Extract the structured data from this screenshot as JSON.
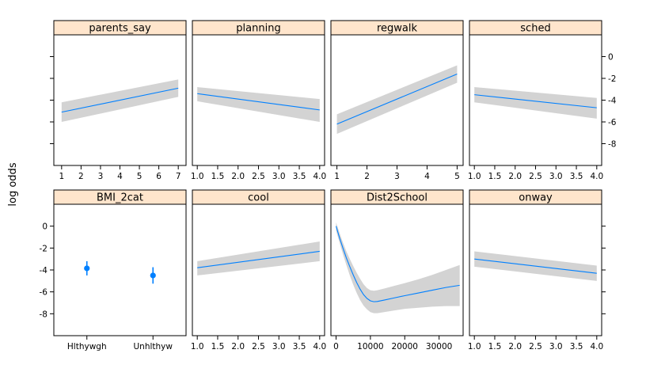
{
  "chart_data": {
    "type": "line",
    "layout": "lattice 4x2",
    "ylabel": "log odds",
    "ylim": [
      -10,
      2
    ],
    "yticks": [
      -8,
      -6,
      -4,
      -2,
      0
    ],
    "panels": [
      {
        "name": "parents_say",
        "kind": "line",
        "xlim": [
          0.6,
          7.4
        ],
        "xticks": [
          1,
          2,
          3,
          4,
          5,
          6,
          7
        ],
        "xticklabels": [
          "1",
          "2",
          "3",
          "4",
          "5",
          "6",
          "7"
        ],
        "x": [
          1,
          7
        ],
        "y": [
          -5.1,
          -2.9
        ],
        "lower": [
          -6.0,
          -3.7
        ],
        "upper": [
          -4.2,
          -2.1
        ]
      },
      {
        "name": "planning",
        "kind": "line",
        "xlim": [
          0.88,
          4.12
        ],
        "xticks": [
          1.0,
          1.5,
          2.0,
          2.5,
          3.0,
          3.5,
          4.0
        ],
        "xticklabels": [
          "1.0",
          "1.5",
          "2.0",
          "2.5",
          "3.0",
          "3.5",
          "4.0"
        ],
        "x": [
          1,
          4
        ],
        "y": [
          -3.4,
          -4.9
        ],
        "lower": [
          -4.1,
          -6.0
        ],
        "upper": [
          -2.8,
          -3.9
        ]
      },
      {
        "name": "regwalk",
        "kind": "line",
        "xlim": [
          0.8,
          5.2
        ],
        "xticks": [
          1,
          2,
          3,
          4,
          5
        ],
        "xticklabels": [
          "1",
          "2",
          "3",
          "4",
          "5"
        ],
        "x": [
          1,
          5
        ],
        "y": [
          -6.2,
          -1.6
        ],
        "lower": [
          -7.1,
          -2.4
        ],
        "upper": [
          -5.3,
          -0.8
        ]
      },
      {
        "name": "sched",
        "kind": "line",
        "xlim": [
          0.88,
          4.12
        ],
        "xticks": [
          1.0,
          1.5,
          2.0,
          2.5,
          3.0,
          3.5,
          4.0
        ],
        "xticklabels": [
          "1.0",
          "1.5",
          "2.0",
          "2.5",
          "3.0",
          "3.5",
          "4.0"
        ],
        "x": [
          1,
          4
        ],
        "y": [
          -3.5,
          -4.7
        ],
        "lower": [
          -4.2,
          -5.7
        ],
        "upper": [
          -2.8,
          -3.8
        ]
      },
      {
        "name": "BMI_2cat",
        "kind": "point",
        "xlim": [
          0.5,
          2.5
        ],
        "xticks": [
          1,
          2
        ],
        "xticklabels": [
          "Hlthywgh",
          "Unhlthyw"
        ],
        "categories": [
          "Hlthywgh",
          "Unhlthyw"
        ],
        "y": [
          -3.85,
          -4.5
        ],
        "lower": [
          -4.5,
          -5.25
        ],
        "upper": [
          -3.2,
          -3.75
        ]
      },
      {
        "name": "cool",
        "kind": "line",
        "xlim": [
          0.88,
          4.12
        ],
        "xticks": [
          1.0,
          1.5,
          2.0,
          2.5,
          3.0,
          3.5,
          4.0
        ],
        "xticklabels": [
          "1.0",
          "1.5",
          "2.0",
          "2.5",
          "3.0",
          "3.5",
          "4.0"
        ],
        "x": [
          1,
          4
        ],
        "y": [
          -3.8,
          -2.3
        ],
        "lower": [
          -4.5,
          -3.2
        ],
        "upper": [
          -3.2,
          -1.4
        ]
      },
      {
        "name": "Dist2School",
        "kind": "line",
        "xlim": [
          -1500,
          37000
        ],
        "xticks": [
          0,
          10000,
          20000,
          30000
        ],
        "xticklabels": [
          "0",
          "10000",
          "20000",
          "30000"
        ],
        "x": [
          0,
          1000,
          2000,
          3000,
          4000,
          5000,
          6000,
          7000,
          8000,
          9000,
          10000,
          11000,
          12000,
          14000,
          17000,
          20000,
          24000,
          28000,
          32000,
          36000
        ],
        "y": [
          0.0,
          -1.05,
          -2.0,
          -2.9,
          -3.7,
          -4.45,
          -5.15,
          -5.75,
          -6.25,
          -6.6,
          -6.82,
          -6.9,
          -6.88,
          -6.75,
          -6.55,
          -6.35,
          -6.1,
          -5.85,
          -5.6,
          -5.4
        ],
        "lower": [
          -0.4,
          -1.5,
          -2.55,
          -3.55,
          -4.5,
          -5.35,
          -6.1,
          -6.75,
          -7.25,
          -7.6,
          -7.85,
          -7.95,
          -7.95,
          -7.85,
          -7.7,
          -7.55,
          -7.45,
          -7.35,
          -7.3,
          -7.3
        ],
        "upper": [
          0.35,
          -0.6,
          -1.5,
          -2.3,
          -3.0,
          -3.65,
          -4.25,
          -4.8,
          -5.3,
          -5.65,
          -5.85,
          -5.9,
          -5.85,
          -5.7,
          -5.45,
          -5.2,
          -4.85,
          -4.45,
          -4.0,
          -3.55
        ]
      },
      {
        "name": "onway",
        "kind": "line",
        "xlim": [
          0.88,
          4.12
        ],
        "xticks": [
          1.0,
          1.5,
          2.0,
          2.5,
          3.0,
          3.5,
          4.0
        ],
        "xticklabels": [
          "1.0",
          "1.5",
          "2.0",
          "2.5",
          "3.0",
          "3.5",
          "4.0"
        ],
        "x": [
          1,
          4
        ],
        "y": [
          -3.0,
          -4.3
        ],
        "lower": [
          -3.7,
          -5.0
        ],
        "upper": [
          -2.3,
          -3.6
        ]
      }
    ]
  }
}
